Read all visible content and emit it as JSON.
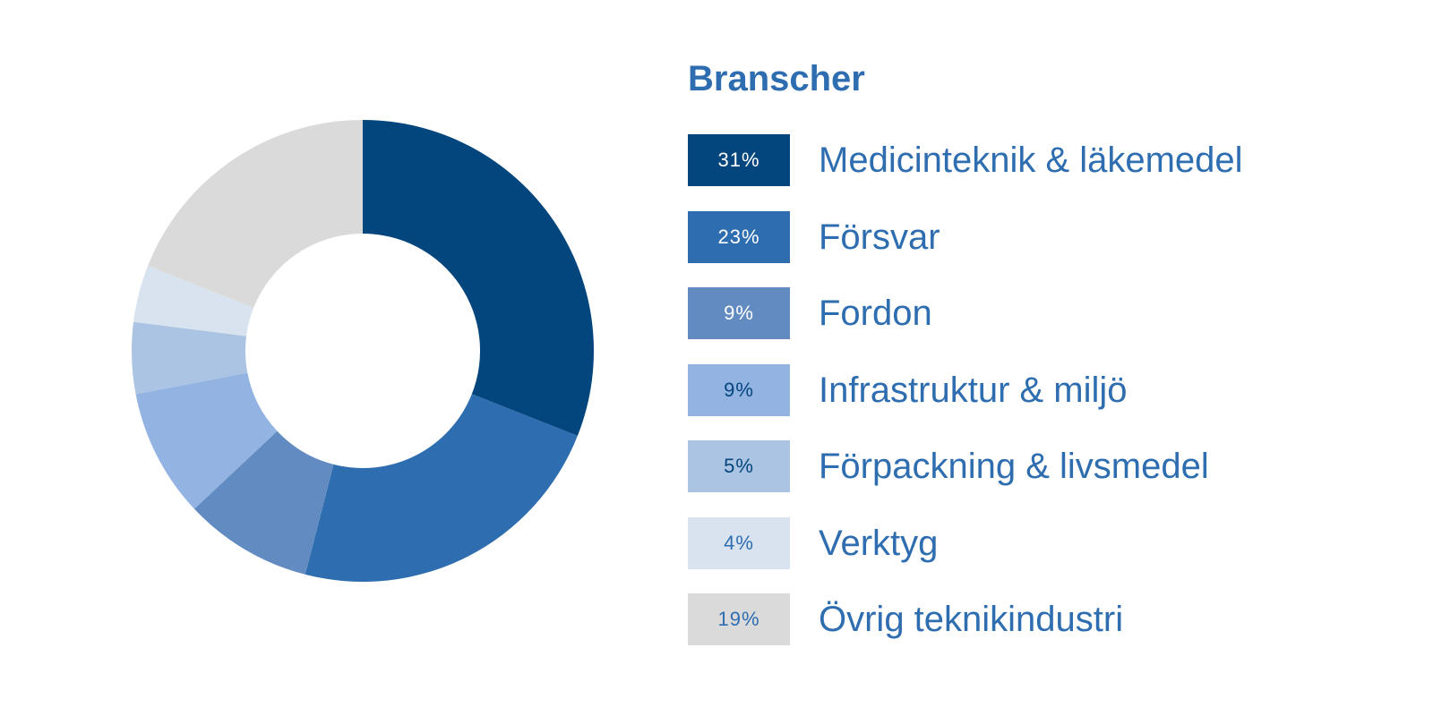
{
  "chart_data": {
    "type": "pie",
    "title": "Branscher",
    "categories": [
      "Medicinteknik & läkemedel",
      "Försvar",
      "Fordon",
      "Infrastruktur & miljö",
      "Förpackning & livsmedel",
      "Verktyg",
      "Övrig teknikindustri"
    ],
    "values": [
      31,
      23,
      9,
      9,
      5,
      4,
      19
    ],
    "value_labels": [
      "31%",
      "23%",
      "9%",
      "9%",
      "5%",
      "4%",
      "19%"
    ],
    "colors": [
      "#03457d",
      "#2e6db0",
      "#628bc1",
      "#93b4e2",
      "#abc4e4",
      "#d9e3ef",
      "#dadada"
    ],
    "label_colors": [
      "#ffffff",
      "#ffffff",
      "#ffffff",
      "#03457d",
      "#03457d",
      "#2e6db0",
      "#2e6db0"
    ],
    "legend_position": "right",
    "hole": true
  }
}
